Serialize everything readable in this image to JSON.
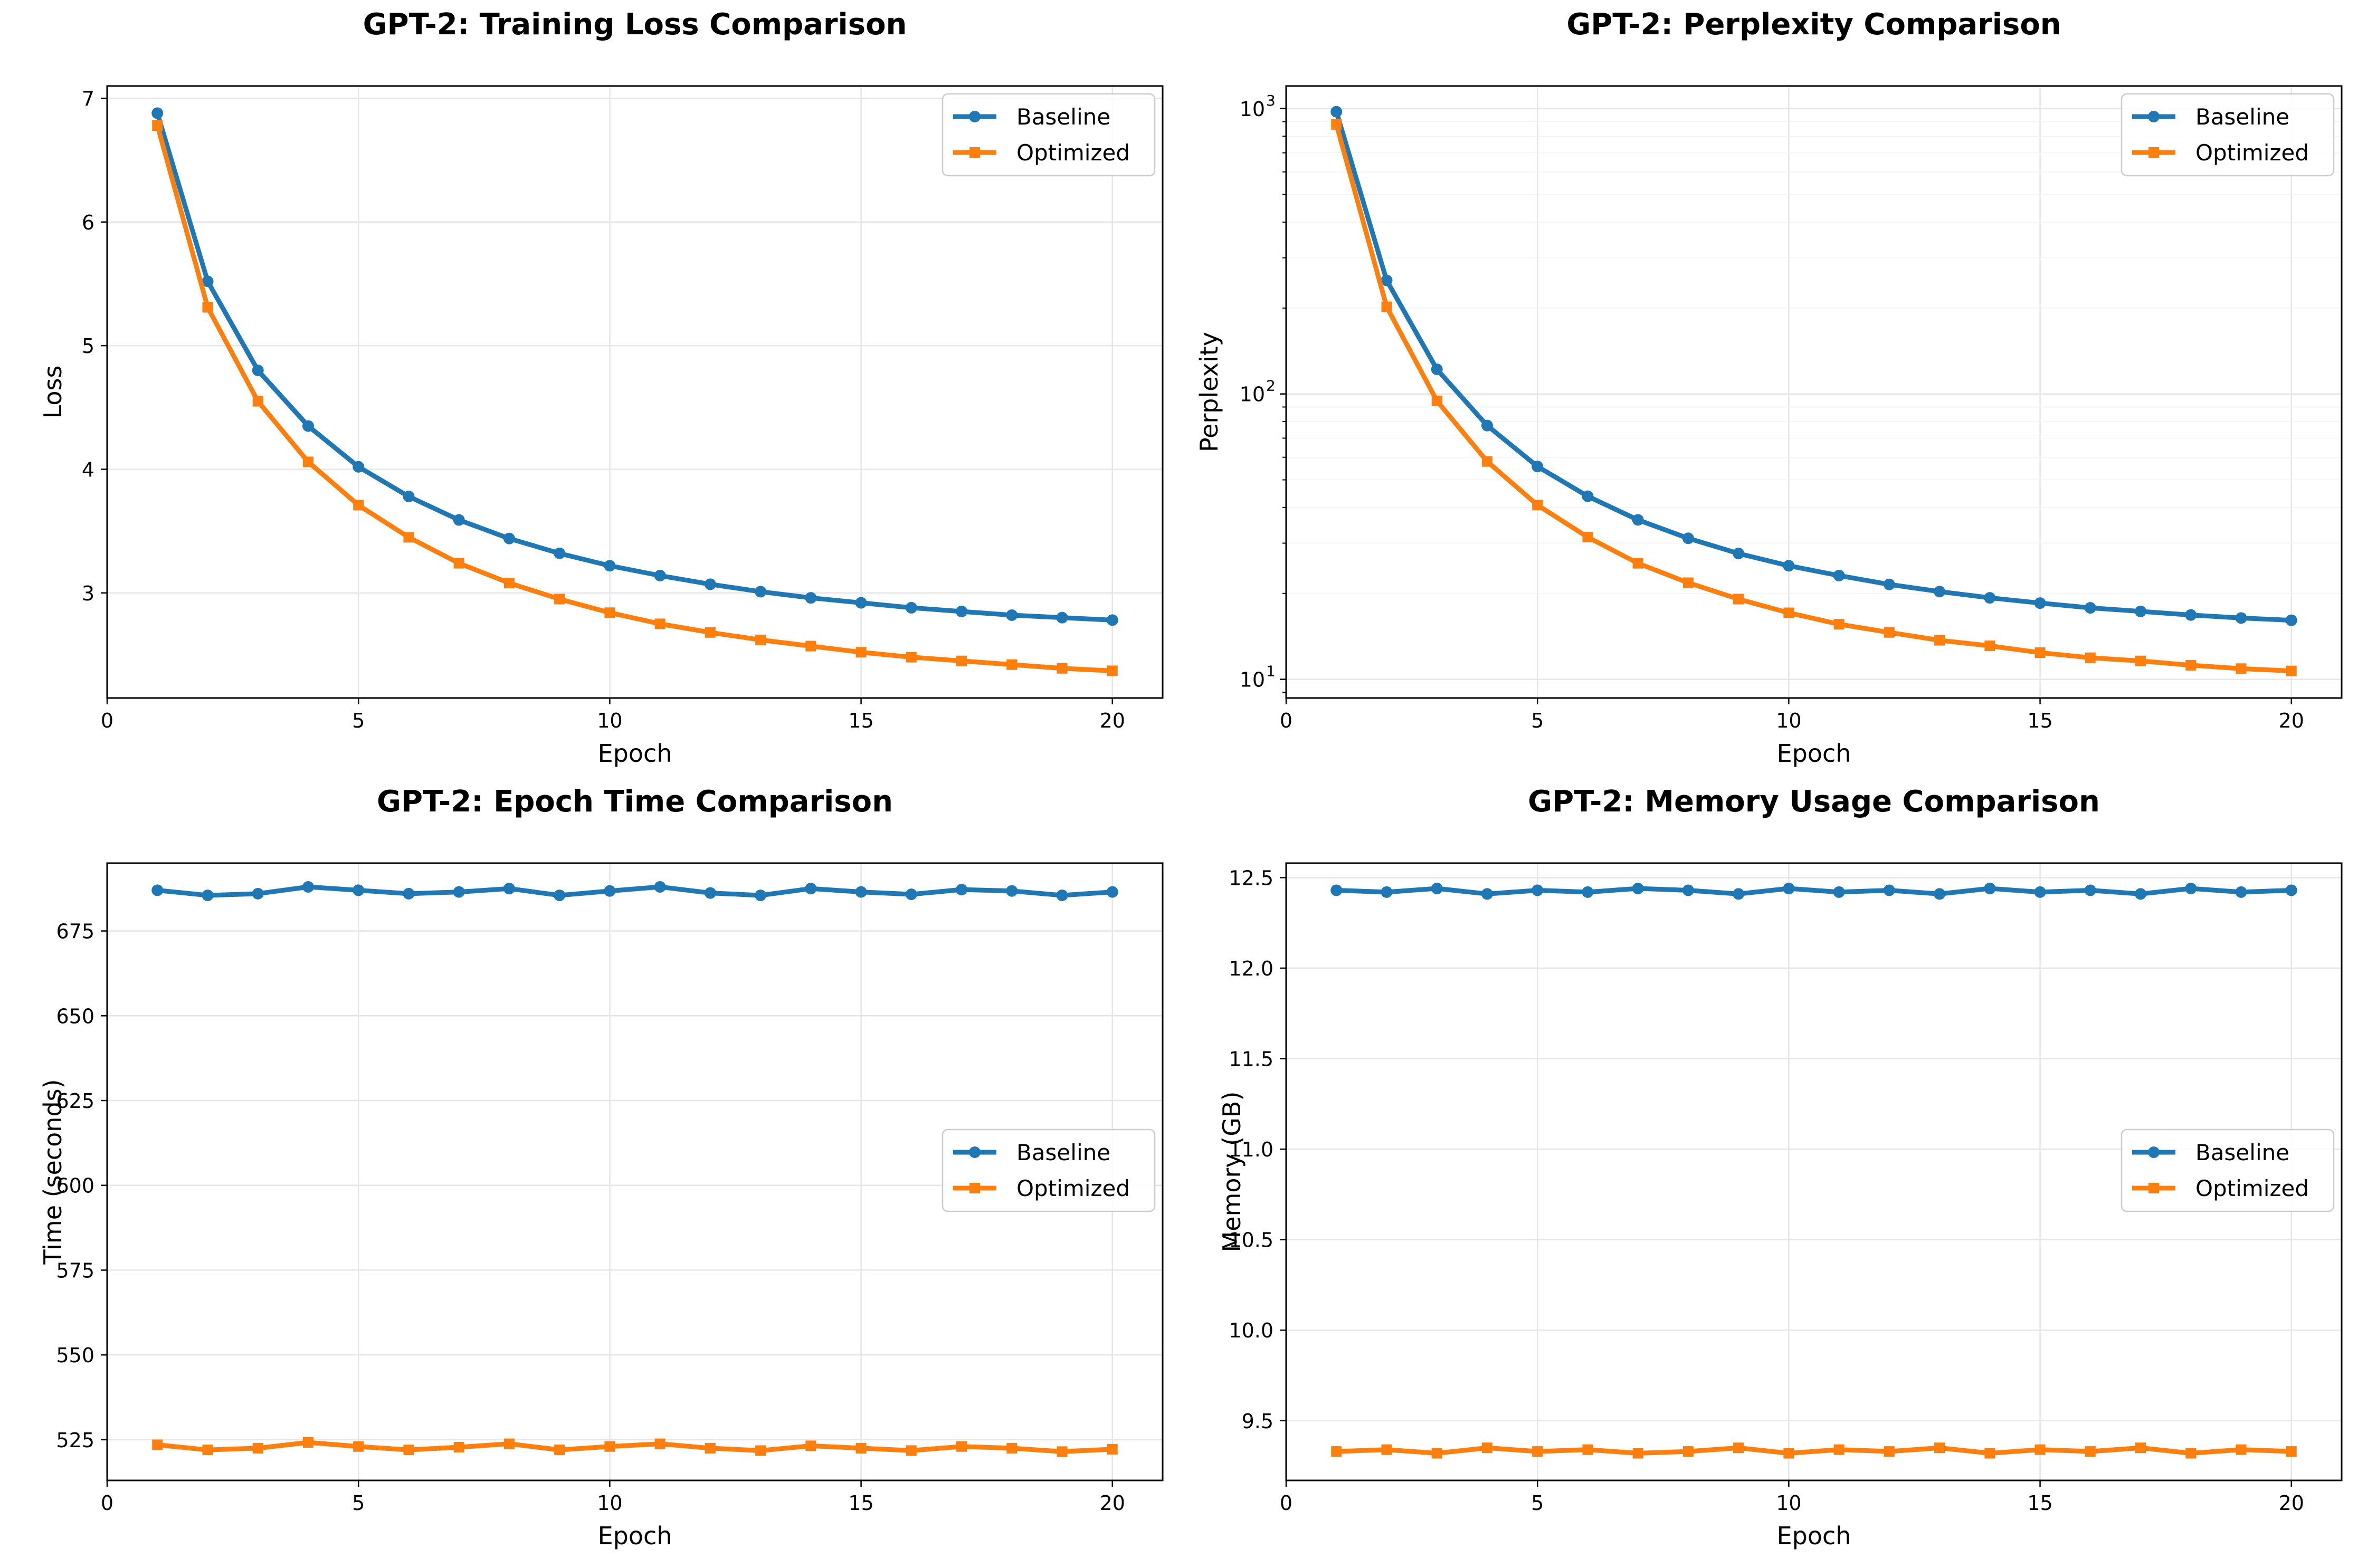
{
  "colors": {
    "baseline": "#1f77b4",
    "optimized": "#ff7f0e",
    "grid": "#e6e6e6"
  },
  "chart_data": [
    {
      "type": "line",
      "title": "GPT-2: Training Loss Comparison",
      "xlabel": "Epoch",
      "ylabel": "Loss",
      "xlim": [
        0,
        21
      ],
      "ylim": [
        2.15,
        7.1
      ],
      "xticks": [
        0,
        5,
        10,
        15,
        20
      ],
      "yticks": [
        3,
        4,
        5,
        6,
        7
      ],
      "ytick_labels": [
        "3",
        "4",
        "5",
        "6",
        "7"
      ],
      "yscale": "linear",
      "grid": true,
      "legend_position": "upper right",
      "x": [
        1,
        2,
        3,
        4,
        5,
        6,
        7,
        8,
        9,
        10,
        11,
        12,
        13,
        14,
        15,
        16,
        17,
        18,
        19,
        20
      ],
      "series": [
        {
          "name": "Baseline",
          "marker": "circle",
          "values": [
            6.88,
            5.52,
            4.8,
            4.35,
            4.02,
            3.78,
            3.59,
            3.44,
            3.32,
            3.22,
            3.14,
            3.07,
            3.01,
            2.96,
            2.92,
            2.88,
            2.85,
            2.82,
            2.8,
            2.78
          ]
        },
        {
          "name": "Optimized",
          "marker": "square",
          "values": [
            6.78,
            5.31,
            4.55,
            4.06,
            3.71,
            3.45,
            3.24,
            3.08,
            2.95,
            2.84,
            2.75,
            2.68,
            2.62,
            2.57,
            2.52,
            2.48,
            2.45,
            2.42,
            2.39,
            2.37
          ]
        }
      ]
    },
    {
      "type": "line",
      "title": "GPT-2: Perplexity Comparison",
      "xlabel": "Epoch",
      "ylabel": "Perplexity",
      "xlim": [
        0,
        21
      ],
      "ylim": [
        8.6,
        1200
      ],
      "xticks": [
        0,
        5,
        10,
        15,
        20
      ],
      "yticks": [
        10,
        100,
        1000
      ],
      "ytick_labels": [
        "10",
        "10",
        "10"
      ],
      "ytick_exponents": [
        "1",
        "2",
        "3"
      ],
      "yscale": "log",
      "grid": true,
      "legend_position": "upper right",
      "x": [
        1,
        2,
        3,
        4,
        5,
        6,
        7,
        8,
        9,
        10,
        11,
        12,
        13,
        14,
        15,
        16,
        17,
        18,
        19,
        20
      ],
      "series": [
        {
          "name": "Baseline",
          "marker": "circle",
          "values": [
            975,
            250,
            122,
            77.5,
            55.7,
            43.8,
            36.2,
            31.2,
            27.6,
            25.0,
            23.1,
            21.5,
            20.3,
            19.3,
            18.5,
            17.8,
            17.3,
            16.8,
            16.4,
            16.1
          ]
        },
        {
          "name": "Optimized",
          "marker": "square",
          "values": [
            880,
            202,
            94.6,
            58.0,
            40.8,
            31.5,
            25.5,
            21.8,
            19.1,
            17.1,
            15.6,
            14.6,
            13.7,
            13.1,
            12.4,
            11.9,
            11.6,
            11.2,
            10.9,
            10.7
          ]
        }
      ]
    },
    {
      "type": "line",
      "title": "GPT-2: Epoch Time Comparison",
      "xlabel": "Epoch",
      "ylabel": "Time (seconds)",
      "xlim": [
        0,
        21
      ],
      "ylim": [
        513,
        695
      ],
      "xticks": [
        0,
        5,
        10,
        15,
        20
      ],
      "yticks": [
        525,
        550,
        575,
        600,
        625,
        650,
        675
      ],
      "ytick_labels": [
        "525",
        "550",
        "575",
        "600",
        "625",
        "650",
        "675"
      ],
      "yscale": "linear",
      "grid": true,
      "legend_position": "center right",
      "x": [
        1,
        2,
        3,
        4,
        5,
        6,
        7,
        8,
        9,
        10,
        11,
        12,
        13,
        14,
        15,
        16,
        17,
        18,
        19,
        20
      ],
      "series": [
        {
          "name": "Baseline",
          "marker": "circle",
          "values": [
            687,
            685.5,
            686,
            688,
            687,
            686,
            686.5,
            687.5,
            685.5,
            686.8,
            688,
            686.2,
            685.5,
            687.5,
            686.5,
            685.8,
            687.2,
            686.8,
            685.5,
            686.5
          ]
        },
        {
          "name": "Optimized",
          "marker": "square",
          "values": [
            523.5,
            522,
            522.5,
            524.2,
            523,
            522,
            522.8,
            523.8,
            522,
            523,
            523.8,
            522.5,
            521.8,
            523.2,
            522.5,
            521.8,
            523,
            522.5,
            521.5,
            522.2
          ]
        }
      ]
    },
    {
      "type": "line",
      "title": "GPT-2: Memory Usage Comparison",
      "xlabel": "Epoch",
      "ylabel": "Memory (GB)",
      "xlim": [
        0,
        21
      ],
      "ylim": [
        9.17,
        12.58
      ],
      "xticks": [
        0,
        5,
        10,
        15,
        20
      ],
      "yticks": [
        9.5,
        10.0,
        10.5,
        11.0,
        11.5,
        12.0,
        12.5
      ],
      "ytick_labels": [
        "9.5",
        "10.0",
        "10.5",
        "11.0",
        "11.5",
        "12.0",
        "12.5"
      ],
      "yscale": "linear",
      "grid": true,
      "legend_position": "center right",
      "x": [
        1,
        2,
        3,
        4,
        5,
        6,
        7,
        8,
        9,
        10,
        11,
        12,
        13,
        14,
        15,
        16,
        17,
        18,
        19,
        20
      ],
      "series": [
        {
          "name": "Baseline",
          "marker": "circle",
          "values": [
            12.43,
            12.42,
            12.44,
            12.41,
            12.43,
            12.42,
            12.44,
            12.43,
            12.41,
            12.44,
            12.42,
            12.43,
            12.41,
            12.44,
            12.42,
            12.43,
            12.41,
            12.44,
            12.42,
            12.43
          ]
        },
        {
          "name": "Optimized",
          "marker": "square",
          "values": [
            9.33,
            9.34,
            9.32,
            9.35,
            9.33,
            9.34,
            9.32,
            9.33,
            9.35,
            9.32,
            9.34,
            9.33,
            9.35,
            9.32,
            9.34,
            9.33,
            9.35,
            9.32,
            9.34,
            9.33
          ]
        }
      ]
    }
  ]
}
